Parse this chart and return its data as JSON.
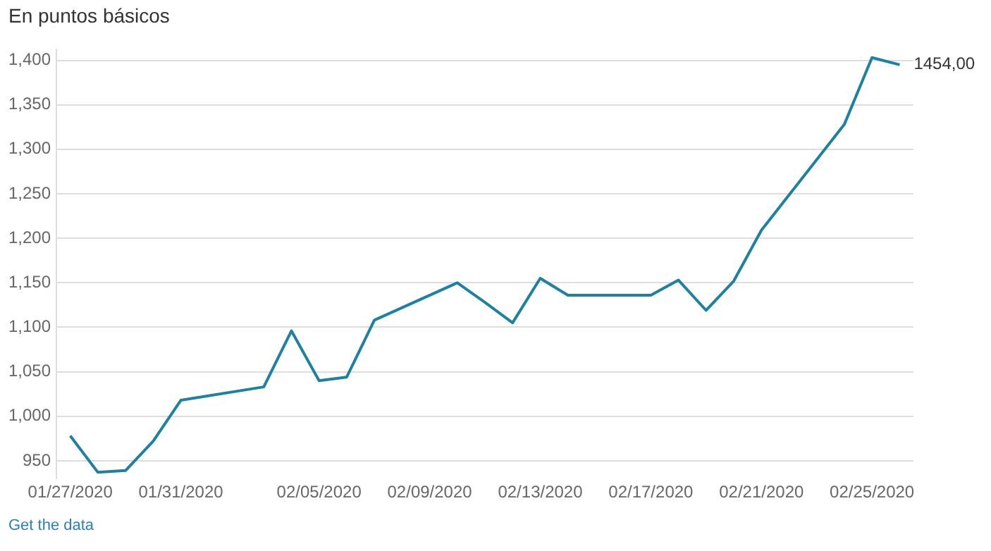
{
  "chart_data": {
    "type": "line",
    "ylabel": "En puntos básicos",
    "x": [
      "2020-01-27",
      "2020-01-28",
      "2020-01-29",
      "2020-01-30",
      "2020-01-31",
      "2020-02-03",
      "2020-02-04",
      "2020-02-05",
      "2020-02-06",
      "2020-02-07",
      "2020-02-10",
      "2020-02-11",
      "2020-02-12",
      "2020-02-13",
      "2020-02-14",
      "2020-02-17",
      "2020-02-18",
      "2020-02-19",
      "2020-02-20",
      "2020-02-21",
      "2020-02-24",
      "2020-02-25",
      "2020-02-26"
    ],
    "series": [
      {
        "color": "#1d81a2",
        "values": [
          978,
          937,
          939,
          972,
          1018,
          1033,
          1096,
          1040,
          1044,
          1108,
          1150,
          1128,
          1105,
          1155,
          1136,
          1136,
          1153,
          1119,
          1152,
          1209,
          1328,
          1403,
          1395
        ]
      }
    ],
    "xlim": [
      "2020-01-26T12:00",
      "2020-02-26T12:00"
    ],
    "xticks": [
      {
        "value": "2020-01-27",
        "label": "01/27/2020"
      },
      {
        "value": "2020-01-31",
        "label": "01/31/2020"
      },
      {
        "value": "2020-02-05",
        "label": "02/05/2020"
      },
      {
        "value": "2020-02-09",
        "label": "02/09/2020"
      },
      {
        "value": "2020-02-13",
        "label": "02/13/2020"
      },
      {
        "value": "2020-02-17",
        "label": "02/17/2020"
      },
      {
        "value": "2020-02-21",
        "label": "02/21/2020"
      },
      {
        "value": "2020-02-25",
        "label": "02/25/2020"
      }
    ],
    "ylim": [
      930,
      1412
    ],
    "yticks": [
      950,
      {
        "value": 1000,
        "label": "1,000"
      },
      {
        "value": 1050,
        "label": "1,050"
      },
      {
        "value": 1100,
        "label": "1,100"
      },
      {
        "value": 1150,
        "label": "1,150"
      },
      {
        "value": 1200,
        "label": "1,200"
      },
      {
        "value": 1250,
        "label": "1,250"
      },
      {
        "value": 1300,
        "label": "1,300"
      },
      {
        "value": 1350,
        "label": "1,350"
      },
      {
        "value": 1400,
        "label": "1,400"
      }
    ],
    "grid": "y",
    "legend": false,
    "marker": "none",
    "line_style": "solid",
    "annotations": [
      {
        "text": "1454,00",
        "x": "2020-02-26",
        "y": 1395
      },
      "Get the data"
    ]
  }
}
